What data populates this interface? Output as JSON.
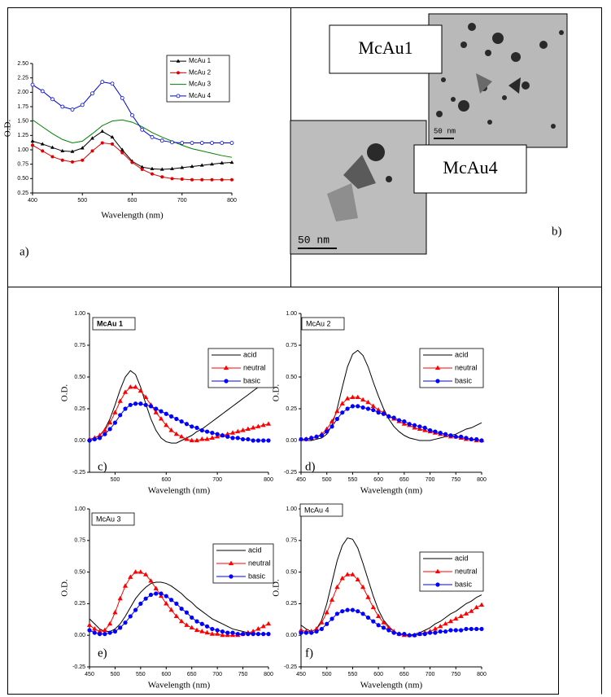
{
  "panel_b": {
    "labels": [
      "McAu1",
      "McAu4"
    ],
    "scale_bars": [
      "50 nm",
      "50 nm"
    ],
    "panel_label": "b)"
  },
  "chart_data": [
    {
      "type": "line",
      "panel_label": "a)",
      "xlabel": "Wavelength (nm)",
      "ylabel": "O.D.",
      "x": [
        400,
        420,
        440,
        460,
        480,
        500,
        520,
        540,
        560,
        580,
        600,
        620,
        640,
        660,
        680,
        700,
        720,
        740,
        760,
        780,
        800
      ],
      "xlim": [
        400,
        800
      ],
      "xticks": [
        400,
        500,
        600,
        700,
        800
      ],
      "ylim": [
        0.25,
        2.5
      ],
      "yticks": [
        {
          "value": 0.25,
          "label": "0.25"
        },
        {
          "value": 0.5,
          "label": "0.50"
        },
        {
          "value": 0.75,
          "label": "0.75"
        },
        {
          "value": 1,
          "label": "1.00"
        },
        {
          "value": 1.25,
          "label": "1.25"
        },
        {
          "value": 1.5,
          "label": "1.50"
        },
        {
          "value": 1.75,
          "label": "1.75"
        },
        {
          "value": 2,
          "label": "2.00"
        },
        {
          "value": 2.25,
          "label": "2.25"
        },
        {
          "value": 2.5,
          "label": "2.50"
        }
      ],
      "series": [
        {
          "name": "McAu 1",
          "color": "#000000",
          "marker": "triangle",
          "values": [
            1.15,
            1.1,
            1.04,
            0.98,
            0.97,
            1.03,
            1.2,
            1.32,
            1.22,
            1.0,
            0.8,
            0.7,
            0.67,
            0.66,
            0.67,
            0.69,
            0.71,
            0.73,
            0.75,
            0.77,
            0.78
          ]
        },
        {
          "name": "McAu 2",
          "color": "#e00000",
          "marker": "circle",
          "values": [
            1.08,
            0.98,
            0.88,
            0.82,
            0.79,
            0.82,
            0.98,
            1.12,
            1.1,
            0.95,
            0.78,
            0.66,
            0.58,
            0.53,
            0.5,
            0.49,
            0.48,
            0.48,
            0.48,
            0.48,
            0.48
          ]
        },
        {
          "name": "McAu 3",
          "color": "#008000",
          "marker": "none",
          "values": [
            1.52,
            1.4,
            1.28,
            1.18,
            1.12,
            1.15,
            1.28,
            1.42,
            1.5,
            1.52,
            1.48,
            1.4,
            1.3,
            1.22,
            1.15,
            1.08,
            1.02,
            0.98,
            0.94,
            0.9,
            0.87
          ]
        },
        {
          "name": "McAu 4",
          "color": "#0000e0",
          "marker": "open-circle",
          "values": [
            2.13,
            2.02,
            1.88,
            1.75,
            1.7,
            1.78,
            1.98,
            2.18,
            2.15,
            1.9,
            1.6,
            1.35,
            1.22,
            1.16,
            1.13,
            1.12,
            1.12,
            1.12,
            1.12,
            1.12,
            1.12
          ]
        }
      ]
    },
    {
      "type": "line",
      "label": "McAu 1",
      "panel_label": "c)",
      "xlabel": "Wavelength (nm)",
      "ylabel": "O.D.",
      "x": [
        450,
        460,
        470,
        480,
        490,
        500,
        510,
        520,
        530,
        540,
        550,
        560,
        570,
        580,
        590,
        600,
        610,
        620,
        630,
        640,
        650,
        660,
        670,
        680,
        690,
        700,
        710,
        720,
        730,
        740,
        750,
        760,
        770,
        780,
        790,
        800
      ],
      "xlim": [
        450,
        800
      ],
      "xticks": [
        500,
        600,
        700,
        800
      ],
      "ylim": [
        -0.25,
        1
      ],
      "yticks": [
        {
          "value": -0.25,
          "label": "-0.25"
        },
        {
          "value": 0,
          "label": "0.00"
        },
        {
          "value": 0.25,
          "label": "0.25"
        },
        {
          "value": 0.5,
          "label": "0.50"
        },
        {
          "value": 0.75,
          "label": "0.75"
        },
        {
          "value": 1,
          "label": "1.00"
        }
      ],
      "series": [
        {
          "name": "acid",
          "color": "#000000",
          "marker": "none",
          "values": [
            0.01,
            0.02,
            0.04,
            0.09,
            0.17,
            0.28,
            0.4,
            0.5,
            0.55,
            0.52,
            0.42,
            0.29,
            0.17,
            0.08,
            0.02,
            -0.01,
            -0.02,
            -0.02,
            0.0,
            0.02,
            0.04,
            0.07,
            0.09,
            0.12,
            0.15,
            0.18,
            0.21,
            0.24,
            0.27,
            0.3,
            0.33,
            0.36,
            0.39,
            0.42,
            0.44,
            0.47
          ]
        },
        {
          "name": "neutral",
          "color": "#ff0000",
          "marker": "triangle",
          "values": [
            0.01,
            0.02,
            0.04,
            0.08,
            0.14,
            0.22,
            0.31,
            0.38,
            0.42,
            0.42,
            0.39,
            0.34,
            0.28,
            0.22,
            0.17,
            0.12,
            0.08,
            0.05,
            0.03,
            0.01,
            0.0,
            0.0,
            0.01,
            0.01,
            0.02,
            0.03,
            0.04,
            0.05,
            0.06,
            0.07,
            0.08,
            0.09,
            0.1,
            0.11,
            0.12,
            0.13
          ]
        },
        {
          "name": "basic",
          "color": "#0000ff",
          "marker": "circle",
          "values": [
            0.0,
            0.01,
            0.02,
            0.05,
            0.09,
            0.14,
            0.2,
            0.25,
            0.28,
            0.29,
            0.29,
            0.28,
            0.27,
            0.25,
            0.23,
            0.21,
            0.19,
            0.17,
            0.15,
            0.13,
            0.11,
            0.1,
            0.08,
            0.07,
            0.06,
            0.05,
            0.04,
            0.03,
            0.02,
            0.02,
            0.01,
            0.01,
            0.0,
            0.0,
            0.0,
            0.0
          ]
        }
      ]
    },
    {
      "type": "line",
      "label": "McAu 2",
      "panel_label": "d)",
      "xlabel": "Wavelength (nm)",
      "ylabel": "O.D.",
      "x": [
        450,
        460,
        470,
        480,
        490,
        500,
        510,
        520,
        530,
        540,
        550,
        560,
        570,
        580,
        590,
        600,
        610,
        620,
        630,
        640,
        650,
        660,
        670,
        680,
        690,
        700,
        710,
        720,
        730,
        740,
        750,
        760,
        770,
        780,
        790,
        800
      ],
      "xlim": [
        450,
        800
      ],
      "xticks": [
        450,
        500,
        550,
        600,
        650,
        700,
        750,
        800
      ],
      "ylim": [
        -0.25,
        1
      ],
      "yticks": [
        {
          "value": -0.25,
          "label": "-0.25"
        },
        {
          "value": 0,
          "label": "0.00"
        },
        {
          "value": 0.25,
          "label": "0.25"
        },
        {
          "value": 0.5,
          "label": "0.50"
        },
        {
          "value": 0.75,
          "label": "0.75"
        },
        {
          "value": 1,
          "label": "1.00"
        }
      ],
      "series": [
        {
          "name": "acid",
          "color": "#000000",
          "marker": "none",
          "values": [
            0.0,
            0.0,
            0.0,
            0.01,
            0.02,
            0.05,
            0.12,
            0.25,
            0.42,
            0.58,
            0.68,
            0.71,
            0.67,
            0.58,
            0.46,
            0.35,
            0.25,
            0.17,
            0.11,
            0.07,
            0.04,
            0.02,
            0.01,
            0.0,
            0.0,
            0.0,
            0.01,
            0.02,
            0.03,
            0.04,
            0.05,
            0.07,
            0.09,
            0.1,
            0.12,
            0.14
          ]
        },
        {
          "name": "neutral",
          "color": "#ff0000",
          "marker": "triangle",
          "values": [
            0.01,
            0.01,
            0.02,
            0.03,
            0.05,
            0.09,
            0.15,
            0.23,
            0.29,
            0.33,
            0.34,
            0.34,
            0.32,
            0.3,
            0.27,
            0.24,
            0.22,
            0.19,
            0.17,
            0.15,
            0.13,
            0.12,
            0.1,
            0.09,
            0.08,
            0.07,
            0.06,
            0.05,
            0.04,
            0.03,
            0.03,
            0.02,
            0.01,
            0.01,
            0.0,
            0.0
          ]
        },
        {
          "name": "basic",
          "color": "#0000ff",
          "marker": "circle",
          "values": [
            0.01,
            0.01,
            0.02,
            0.03,
            0.04,
            0.07,
            0.11,
            0.17,
            0.22,
            0.25,
            0.27,
            0.27,
            0.26,
            0.25,
            0.24,
            0.22,
            0.21,
            0.19,
            0.18,
            0.16,
            0.15,
            0.13,
            0.12,
            0.11,
            0.1,
            0.08,
            0.07,
            0.06,
            0.05,
            0.04,
            0.03,
            0.03,
            0.02,
            0.01,
            0.01,
            0.0
          ]
        }
      ]
    },
    {
      "type": "line",
      "label": "McAu 3",
      "panel_label": "e)",
      "xlabel": "Wavelength (nm)",
      "ylabel": "O.D.",
      "x": [
        450,
        460,
        470,
        480,
        490,
        500,
        510,
        520,
        530,
        540,
        550,
        560,
        570,
        580,
        590,
        600,
        610,
        620,
        630,
        640,
        650,
        660,
        670,
        680,
        690,
        700,
        710,
        720,
        730,
        740,
        750,
        760,
        770,
        780,
        790,
        800
      ],
      "xlim": [
        450,
        800
      ],
      "xticks": [
        450,
        500,
        550,
        600,
        650,
        700,
        750,
        800
      ],
      "ylim": [
        -0.25,
        1
      ],
      "yticks": [
        {
          "value": -0.25,
          "label": "-0.25"
        },
        {
          "value": 0,
          "label": "0.00"
        },
        {
          "value": 0.25,
          "label": "0.25"
        },
        {
          "value": 0.5,
          "label": "0.50"
        },
        {
          "value": 0.75,
          "label": "0.75"
        },
        {
          "value": 1,
          "label": "1.00"
        }
      ],
      "series": [
        {
          "name": "acid",
          "color": "#000000",
          "marker": "none",
          "values": [
            0.13,
            0.09,
            0.05,
            0.03,
            0.03,
            0.05,
            0.09,
            0.15,
            0.22,
            0.29,
            0.34,
            0.38,
            0.41,
            0.42,
            0.42,
            0.41,
            0.39,
            0.36,
            0.33,
            0.29,
            0.26,
            0.22,
            0.19,
            0.16,
            0.13,
            0.11,
            0.09,
            0.07,
            0.05,
            0.04,
            0.03,
            0.02,
            0.01,
            0.01,
            0.01,
            0.01
          ]
        },
        {
          "name": "neutral",
          "color": "#ff0000",
          "marker": "triangle",
          "values": [
            0.08,
            0.05,
            0.03,
            0.04,
            0.09,
            0.18,
            0.29,
            0.39,
            0.46,
            0.5,
            0.5,
            0.48,
            0.43,
            0.37,
            0.31,
            0.25,
            0.2,
            0.15,
            0.11,
            0.08,
            0.06,
            0.04,
            0.03,
            0.02,
            0.01,
            0.01,
            0.0,
            0.0,
            0.0,
            0.0,
            0.01,
            0.02,
            0.03,
            0.05,
            0.07,
            0.09
          ]
        },
        {
          "name": "basic",
          "color": "#0000ff",
          "marker": "circle",
          "values": [
            0.04,
            0.02,
            0.01,
            0.01,
            0.02,
            0.03,
            0.06,
            0.1,
            0.15,
            0.2,
            0.25,
            0.29,
            0.32,
            0.33,
            0.33,
            0.31,
            0.28,
            0.25,
            0.21,
            0.18,
            0.14,
            0.11,
            0.09,
            0.07,
            0.05,
            0.04,
            0.03,
            0.02,
            0.02,
            0.01,
            0.01,
            0.01,
            0.01,
            0.01,
            0.01,
            0.01
          ]
        }
      ]
    },
    {
      "type": "line",
      "label": "McAu 4",
      "panel_label": "f)",
      "xlabel": "Wavelength (nm)",
      "ylabel": "O.D.",
      "x": [
        450,
        460,
        470,
        480,
        490,
        500,
        510,
        520,
        530,
        540,
        550,
        560,
        570,
        580,
        590,
        600,
        610,
        620,
        630,
        640,
        650,
        660,
        670,
        680,
        690,
        700,
        710,
        720,
        730,
        740,
        750,
        760,
        770,
        780,
        790,
        800
      ],
      "xlim": [
        450,
        800
      ],
      "xticks": [
        450,
        500,
        550,
        600,
        650,
        700,
        750,
        800
      ],
      "ylim": [
        -0.25,
        1
      ],
      "yticks": [
        {
          "value": -0.25,
          "label": "-0.25"
        },
        {
          "value": 0,
          "label": "0.00"
        },
        {
          "value": 0.25,
          "label": "0.25"
        },
        {
          "value": 0.5,
          "label": "0.50"
        },
        {
          "value": 0.75,
          "label": "0.75"
        },
        {
          "value": 1,
          "label": "1.00"
        }
      ],
      "series": [
        {
          "name": "acid",
          "color": "#000000",
          "marker": "none",
          "values": [
            0.08,
            0.05,
            0.03,
            0.05,
            0.12,
            0.25,
            0.42,
            0.59,
            0.71,
            0.77,
            0.76,
            0.69,
            0.57,
            0.44,
            0.31,
            0.2,
            0.12,
            0.07,
            0.03,
            0.01,
            0.0,
            0.0,
            0.01,
            0.02,
            0.04,
            0.06,
            0.09,
            0.11,
            0.14,
            0.17,
            0.19,
            0.22,
            0.25,
            0.27,
            0.3,
            0.32
          ]
        },
        {
          "name": "neutral",
          "color": "#ff0000",
          "marker": "triangle",
          "values": [
            0.04,
            0.03,
            0.03,
            0.05,
            0.1,
            0.18,
            0.28,
            0.38,
            0.45,
            0.48,
            0.48,
            0.44,
            0.38,
            0.3,
            0.22,
            0.15,
            0.1,
            0.06,
            0.03,
            0.01,
            0.0,
            0.0,
            0.0,
            0.01,
            0.02,
            0.03,
            0.05,
            0.07,
            0.09,
            0.11,
            0.13,
            0.15,
            0.17,
            0.19,
            0.22,
            0.24
          ]
        },
        {
          "name": "basic",
          "color": "#0000ff",
          "marker": "circle",
          "values": [
            0.02,
            0.02,
            0.02,
            0.03,
            0.05,
            0.09,
            0.13,
            0.17,
            0.19,
            0.2,
            0.2,
            0.19,
            0.17,
            0.14,
            0.11,
            0.08,
            0.06,
            0.04,
            0.02,
            0.01,
            0.01,
            0.0,
            0.0,
            0.01,
            0.01,
            0.02,
            0.02,
            0.03,
            0.03,
            0.04,
            0.04,
            0.04,
            0.05,
            0.05,
            0.05,
            0.05
          ]
        }
      ]
    }
  ]
}
